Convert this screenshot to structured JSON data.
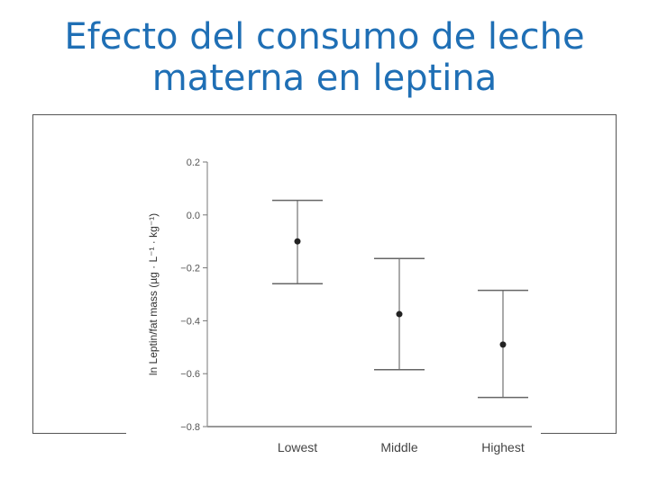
{
  "slide": {
    "title_line1": "Efecto del consumo de leche",
    "title_line2": "materna en leptina",
    "title_color": "#1f6fb5"
  },
  "chart_data": {
    "type": "scatter",
    "title": "",
    "xlabel": "",
    "ylabel": "ln Leptin/fat mass (µg · L⁻¹ · kg⁻¹)",
    "categories": [
      "Lowest",
      "Middle",
      "Highest"
    ],
    "values": [
      -0.1,
      -0.375,
      -0.49
    ],
    "error_low": [
      -0.26,
      -0.585,
      -0.69
    ],
    "error_high": [
      0.055,
      -0.165,
      -0.285
    ],
    "ylim": [
      -0.8,
      0.2
    ],
    "yticks": [
      0.2,
      0.0,
      -0.2,
      -0.4,
      -0.6,
      -0.8
    ],
    "ytick_labels": [
      "0.2",
      "0.0",
      "−0.2",
      "−0.4",
      "−0.6",
      "−0.8"
    ],
    "grid": false,
    "legend": "none",
    "marker_color": "#222222"
  }
}
